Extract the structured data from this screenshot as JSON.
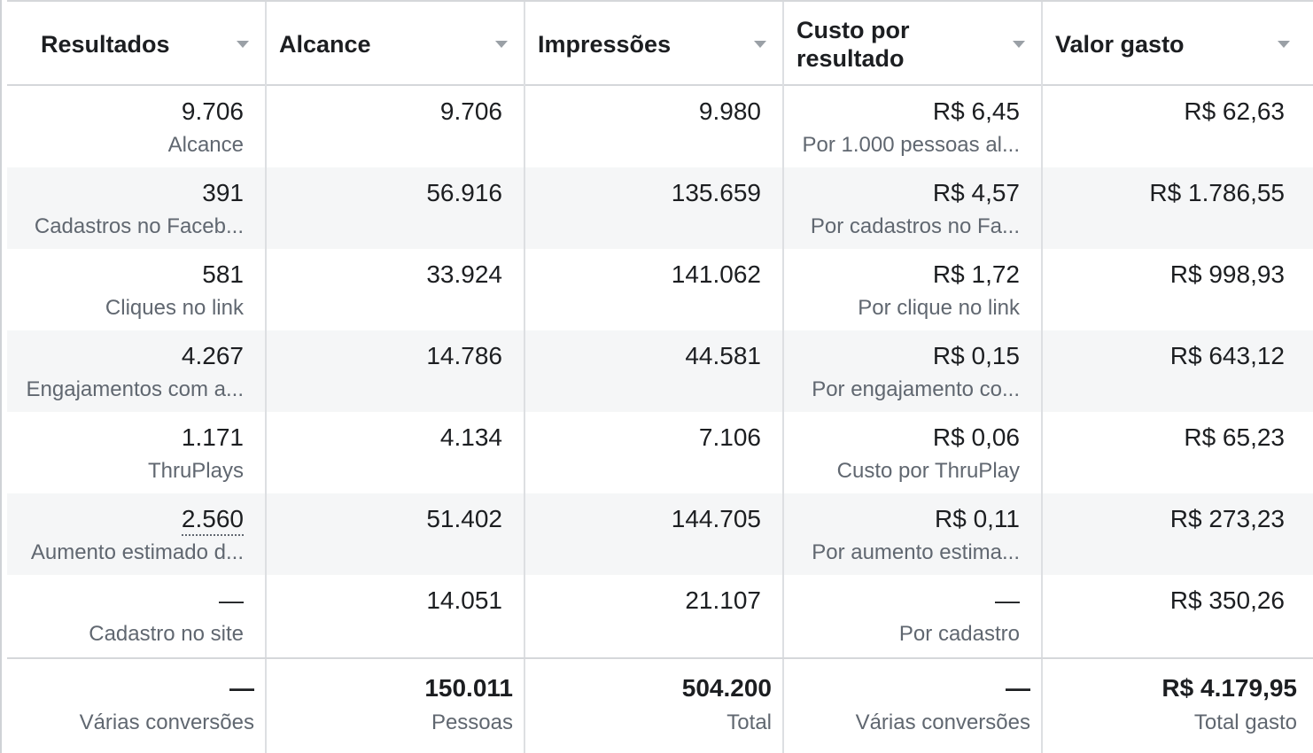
{
  "columns": [
    {
      "label": "Resultados"
    },
    {
      "label": "Alcance"
    },
    {
      "label": "Impressões"
    },
    {
      "label": "Custo por\nresultado"
    },
    {
      "label": "Valor gasto"
    }
  ],
  "rows": [
    {
      "resultados": "9.706",
      "resultados_sub": "Alcance",
      "alcance": "9.706",
      "impressoes": "9.980",
      "custo": "R$ 6,45",
      "custo_sub": "Por 1.000 pessoas al...",
      "valor": "R$ 62,63"
    },
    {
      "resultados": "391",
      "resultados_sub": "Cadastros no Faceb...",
      "alcance": "56.916",
      "impressoes": "135.659",
      "custo": "R$ 4,57",
      "custo_sub": "Por cadastros no Fa...",
      "valor": "R$ 1.786,55"
    },
    {
      "resultados": "581",
      "resultados_sub": "Cliques no link",
      "alcance": "33.924",
      "impressoes": "141.062",
      "custo": "R$ 1,72",
      "custo_sub": "Por clique no link",
      "valor": "R$ 998,93"
    },
    {
      "resultados": "4.267",
      "resultados_sub": "Engajamentos com a...",
      "alcance": "14.786",
      "impressoes": "44.581",
      "custo": "R$ 0,15",
      "custo_sub": "Por engajamento co...",
      "valor": "R$ 643,12"
    },
    {
      "resultados": "1.171",
      "resultados_sub": "ThruPlays",
      "alcance": "4.134",
      "impressoes": "7.106",
      "custo": "R$ 0,06",
      "custo_sub": "Custo por ThruPlay",
      "valor": "R$ 65,23"
    },
    {
      "resultados": "2.560",
      "resultados_sub": "Aumento estimado d...",
      "alcance": "51.402",
      "impressoes": "144.705",
      "custo": "R$ 0,11",
      "custo_sub": "Por aumento estima...",
      "valor": "R$ 273,23"
    },
    {
      "resultados": "—",
      "resultados_sub": "Cadastro no site",
      "alcance": "14.051",
      "impressoes": "21.107",
      "custo": "—",
      "custo_sub": "Por cadastro",
      "valor": "R$ 350,26"
    }
  ],
  "totals": {
    "resultados": "—",
    "resultados_sub": "Várias conversões",
    "alcance": "150.011",
    "alcance_sub": "Pessoas",
    "impressoes": "504.200",
    "impressoes_sub": "Total",
    "custo": "—",
    "custo_sub": "Várias conversões",
    "valor": "R$ 4.179,95",
    "valor_sub": "Total gasto"
  }
}
